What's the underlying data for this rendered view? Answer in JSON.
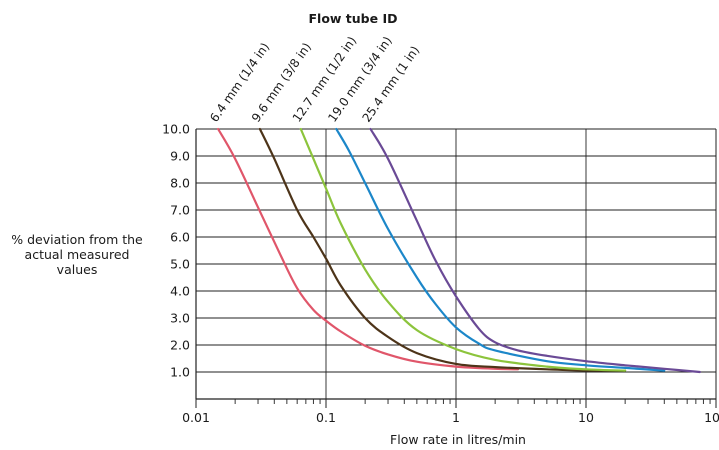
{
  "chart_data": {
    "type": "line",
    "title": "Flow tube ID",
    "xlabel": "Flow rate in litres/min",
    "ylabel": [
      "% deviation from the",
      "actual measured",
      "values"
    ],
    "x_scale": "log",
    "xlim": [
      0.01,
      100
    ],
    "ylim": [
      0,
      10
    ],
    "x_ticks": [
      "0.01",
      "0.1",
      "1",
      "10",
      "100"
    ],
    "y_ticks": [
      "1.0",
      "2.0",
      "3.0",
      "4.0",
      "5.0",
      "6.0",
      "7.0",
      "8.0",
      "9.0",
      "10.0"
    ],
    "grid": true,
    "series": [
      {
        "name": "6.4 mm (1/4 in)",
        "color": "#e0566a",
        "x": [
          0.0148,
          0.02,
          0.03,
          0.045,
          0.06,
          0.08,
          0.1,
          0.13,
          0.2,
          0.3,
          0.5,
          1.0,
          2.0,
          3.0
        ],
        "y": [
          10.0,
          8.9,
          7.1,
          5.3,
          4.1,
          3.3,
          2.9,
          2.5,
          1.97,
          1.65,
          1.38,
          1.2,
          1.12,
          1.1
        ]
      },
      {
        "name": "9.6 mm (3/8 in)",
        "color": "#4d3419",
        "x": [
          0.031,
          0.04,
          0.06,
          0.08,
          0.1,
          0.13,
          0.2,
          0.3,
          0.5,
          1.0,
          2.0,
          5.0,
          10.0,
          20.0
        ],
        "y": [
          10.0,
          8.9,
          7.0,
          6.0,
          5.2,
          4.2,
          3.0,
          2.3,
          1.7,
          1.3,
          1.18,
          1.1,
          1.06,
          1.05
        ]
      },
      {
        "name": "12.7 mm (1/2 in)",
        "color": "#8cc43c",
        "x": [
          0.064,
          0.08,
          0.1,
          0.13,
          0.2,
          0.3,
          0.5,
          1.0,
          2.0,
          5.0,
          10.0,
          20.0
        ],
        "y": [
          10.0,
          8.9,
          7.8,
          6.5,
          4.8,
          3.6,
          2.55,
          1.85,
          1.45,
          1.2,
          1.1,
          1.05
        ]
      },
      {
        "name": "19.0 mm (3/4 in)",
        "color": "#1c87c9",
        "x": [
          0.12,
          0.15,
          0.2,
          0.3,
          0.5,
          0.7,
          1.0,
          1.5,
          2.0,
          5.0,
          10.0,
          20.0,
          40.0
        ],
        "y": [
          10.0,
          9.2,
          8.0,
          6.3,
          4.5,
          3.5,
          2.65,
          2.05,
          1.8,
          1.4,
          1.25,
          1.15,
          1.05
        ]
      },
      {
        "name": "25.4 mm (1 in)",
        "color": "#6a4a96",
        "x": [
          0.22,
          0.3,
          0.5,
          0.7,
          1.0,
          1.5,
          2.0,
          3.0,
          5.0,
          10.0,
          20.0,
          40.0,
          75.0
        ],
        "y": [
          10.0,
          8.9,
          6.6,
          5.1,
          3.8,
          2.6,
          2.1,
          1.8,
          1.6,
          1.4,
          1.25,
          1.12,
          1.0
        ]
      }
    ]
  }
}
